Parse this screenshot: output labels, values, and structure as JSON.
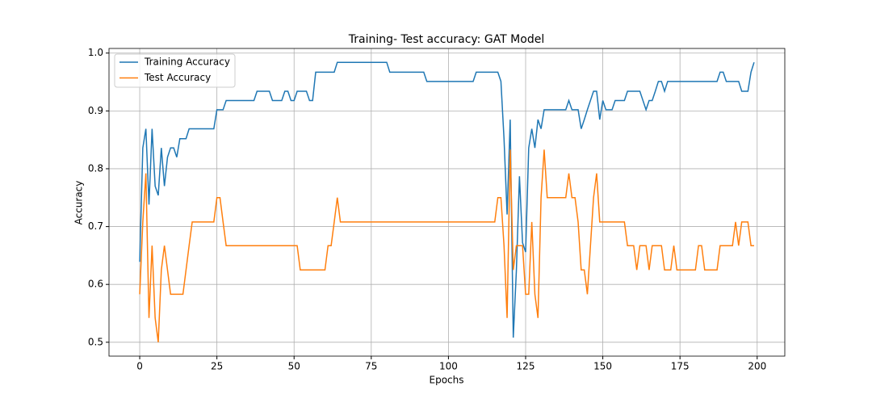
{
  "chart_data": {
    "type": "line",
    "title": "Training- Test accuracy: GAT Model",
    "x_label": "Epochs",
    "y_label": "Accuracy",
    "x": [
      0,
      1,
      2,
      3,
      4,
      5,
      6,
      7,
      8,
      9,
      10,
      11,
      12,
      13,
      14,
      15,
      16,
      17,
      18,
      19,
      20,
      21,
      22,
      23,
      24,
      25,
      26,
      27,
      28,
      29,
      30,
      31,
      32,
      33,
      34,
      35,
      36,
      37,
      38,
      39,
      40,
      41,
      42,
      43,
      44,
      45,
      46,
      47,
      48,
      49,
      50,
      51,
      52,
      53,
      54,
      55,
      56,
      57,
      58,
      59,
      60,
      61,
      62,
      63,
      64,
      65,
      66,
      67,
      68,
      69,
      70,
      71,
      72,
      73,
      74,
      75,
      76,
      77,
      78,
      79,
      80,
      81,
      82,
      83,
      84,
      85,
      86,
      87,
      88,
      89,
      90,
      91,
      92,
      93,
      94,
      95,
      96,
      97,
      98,
      99,
      100,
      101,
      102,
      103,
      104,
      105,
      106,
      107,
      108,
      109,
      110,
      111,
      112,
      113,
      114,
      115,
      116,
      117,
      118,
      119,
      120,
      121,
      122,
      123,
      124,
      125,
      126,
      127,
      128,
      129,
      130,
      131,
      132,
      133,
      134,
      135,
      136,
      137,
      138,
      139,
      140,
      141,
      142,
      143,
      144,
      145,
      146,
      147,
      148,
      149,
      150,
      151,
      152,
      153,
      154,
      155,
      156,
      157,
      158,
      159,
      160,
      161,
      162,
      163,
      164,
      165,
      166,
      167,
      168,
      169,
      170,
      171,
      172,
      173,
      174,
      175,
      176,
      177,
      178,
      179,
      180,
      181,
      182,
      183,
      184,
      185,
      186,
      187,
      188,
      189,
      190,
      191,
      192,
      193,
      194,
      195,
      196,
      197,
      198,
      199
    ],
    "series": [
      {
        "name": "Training Accuracy",
        "color": "#1f77b4",
        "values": [
          0.639,
          0.836,
          0.869,
          0.738,
          0.869,
          0.77,
          0.754,
          0.836,
          0.77,
          0.82,
          0.836,
          0.836,
          0.82,
          0.852,
          0.852,
          0.852,
          0.869,
          0.869,
          0.869,
          0.869,
          0.869,
          0.869,
          0.869,
          0.869,
          0.869,
          0.902,
          0.902,
          0.902,
          0.918,
          0.918,
          0.918,
          0.918,
          0.918,
          0.918,
          0.918,
          0.918,
          0.918,
          0.918,
          0.934,
          0.934,
          0.934,
          0.934,
          0.934,
          0.918,
          0.918,
          0.918,
          0.918,
          0.934,
          0.934,
          0.918,
          0.918,
          0.934,
          0.934,
          0.934,
          0.934,
          0.918,
          0.918,
          0.967,
          0.967,
          0.967,
          0.967,
          0.967,
          0.967,
          0.967,
          0.984,
          0.984,
          0.984,
          0.984,
          0.984,
          0.984,
          0.984,
          0.984,
          0.984,
          0.984,
          0.984,
          0.984,
          0.984,
          0.984,
          0.984,
          0.984,
          0.984,
          0.967,
          0.967,
          0.967,
          0.967,
          0.967,
          0.967,
          0.967,
          0.967,
          0.967,
          0.967,
          0.967,
          0.967,
          0.951,
          0.951,
          0.951,
          0.951,
          0.951,
          0.951,
          0.951,
          0.951,
          0.951,
          0.951,
          0.951,
          0.951,
          0.951,
          0.951,
          0.951,
          0.951,
          0.967,
          0.967,
          0.967,
          0.967,
          0.967,
          0.967,
          0.967,
          0.967,
          0.951,
          0.852,
          0.721,
          0.885,
          0.508,
          0.623,
          0.787,
          0.672,
          0.656,
          0.836,
          0.869,
          0.836,
          0.885,
          0.869,
          0.902,
          0.902,
          0.902,
          0.902,
          0.902,
          0.902,
          0.902,
          0.902,
          0.918,
          0.902,
          0.902,
          0.902,
          0.869,
          0.885,
          0.902,
          0.918,
          0.934,
          0.934,
          0.885,
          0.918,
          0.902,
          0.902,
          0.902,
          0.918,
          0.918,
          0.918,
          0.918,
          0.934,
          0.934,
          0.934,
          0.934,
          0.934,
          0.918,
          0.902,
          0.918,
          0.918,
          0.934,
          0.951,
          0.951,
          0.934,
          0.951,
          0.951,
          0.951,
          0.951,
          0.951,
          0.951,
          0.951,
          0.951,
          0.951,
          0.951,
          0.951,
          0.951,
          0.951,
          0.951,
          0.951,
          0.951,
          0.951,
          0.967,
          0.967,
          0.951,
          0.951,
          0.951,
          0.951,
          0.951,
          0.934,
          0.934,
          0.934,
          0.967,
          0.984
        ]
      },
      {
        "name": "Test Accuracy",
        "color": "#ff7f0e",
        "values": [
          0.583,
          0.708,
          0.792,
          0.542,
          0.667,
          0.542,
          0.5,
          0.625,
          0.667,
          0.625,
          0.583,
          0.583,
          0.583,
          0.583,
          0.583,
          0.625,
          0.667,
          0.708,
          0.708,
          0.708,
          0.708,
          0.708,
          0.708,
          0.708,
          0.708,
          0.75,
          0.75,
          0.708,
          0.667,
          0.667,
          0.667,
          0.667,
          0.667,
          0.667,
          0.667,
          0.667,
          0.667,
          0.667,
          0.667,
          0.667,
          0.667,
          0.667,
          0.667,
          0.667,
          0.667,
          0.667,
          0.667,
          0.667,
          0.667,
          0.667,
          0.667,
          0.667,
          0.625,
          0.625,
          0.625,
          0.625,
          0.625,
          0.625,
          0.625,
          0.625,
          0.625,
          0.667,
          0.667,
          0.708,
          0.75,
          0.708,
          0.708,
          0.708,
          0.708,
          0.708,
          0.708,
          0.708,
          0.708,
          0.708,
          0.708,
          0.708,
          0.708,
          0.708,
          0.708,
          0.708,
          0.708,
          0.708,
          0.708,
          0.708,
          0.708,
          0.708,
          0.708,
          0.708,
          0.708,
          0.708,
          0.708,
          0.708,
          0.708,
          0.708,
          0.708,
          0.708,
          0.708,
          0.708,
          0.708,
          0.708,
          0.708,
          0.708,
          0.708,
          0.708,
          0.708,
          0.708,
          0.708,
          0.708,
          0.708,
          0.708,
          0.708,
          0.708,
          0.708,
          0.708,
          0.708,
          0.708,
          0.75,
          0.75,
          0.667,
          0.542,
          0.833,
          0.625,
          0.667,
          0.667,
          0.667,
          0.583,
          0.583,
          0.708,
          0.583,
          0.542,
          0.75,
          0.833,
          0.75,
          0.75,
          0.75,
          0.75,
          0.75,
          0.75,
          0.75,
          0.792,
          0.75,
          0.75,
          0.708,
          0.625,
          0.625,
          0.583,
          0.667,
          0.75,
          0.792,
          0.708,
          0.708,
          0.708,
          0.708,
          0.708,
          0.708,
          0.708,
          0.708,
          0.708,
          0.667,
          0.667,
          0.667,
          0.625,
          0.667,
          0.667,
          0.667,
          0.625,
          0.667,
          0.667,
          0.667,
          0.667,
          0.625,
          0.625,
          0.625,
          0.667,
          0.625,
          0.625,
          0.625,
          0.625,
          0.625,
          0.625,
          0.625,
          0.667,
          0.667,
          0.625,
          0.625,
          0.625,
          0.625,
          0.625,
          0.667,
          0.667,
          0.667,
          0.667,
          0.667,
          0.708,
          0.667,
          0.708,
          0.708,
          0.708,
          0.667,
          0.667
        ]
      }
    ],
    "xlim": [
      -9.95,
      208.95
    ],
    "xticks": [
      0,
      25,
      50,
      75,
      100,
      125,
      150,
      175,
      200
    ],
    "ylim": [
      0.476,
      1.008
    ],
    "yticks": [
      0.5,
      0.6,
      0.7,
      0.8,
      0.9,
      {
        "value": 1,
        "label": "1.0"
      }
    ],
    "grid": true,
    "legend": "upper-left"
  }
}
